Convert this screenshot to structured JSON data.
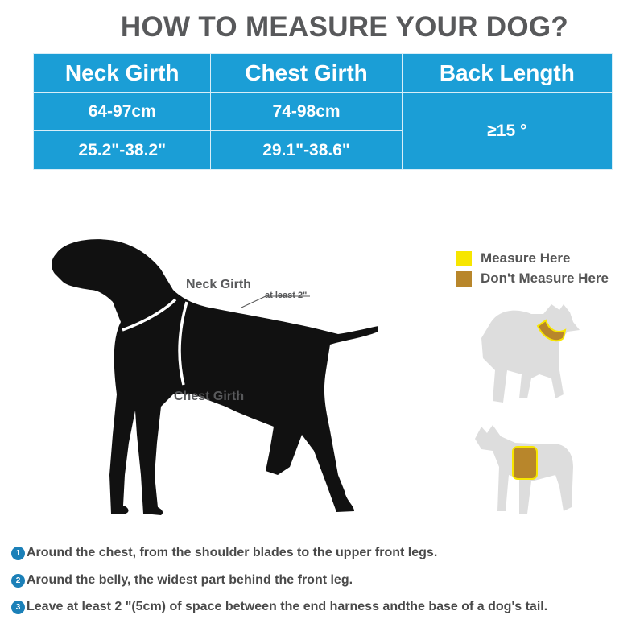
{
  "title": "HOW TO MEASURE YOUR DOG?",
  "table": {
    "headers": [
      "Neck Girth",
      "Chest Girth",
      "Back Length"
    ],
    "neck": [
      "64-97cm",
      "25.2\"-38.2\""
    ],
    "chest": [
      "74-98cm",
      "29.1\"-38.6\""
    ],
    "back": "≥15 °",
    "color": "#1b9ed6"
  },
  "diagram": {
    "neck_label": "Neck Girth",
    "chest_label": "Chest Girth",
    "gap_label": "at least 2\""
  },
  "legend": [
    {
      "label": "Measure Here",
      "color": "#f7e600"
    },
    {
      "label": "Don't Measure Here",
      "color": "#b8862b"
    }
  ],
  "notes": [
    {
      "num": "1",
      "text": "Around the chest, from the shoulder blades to the upper front legs."
    },
    {
      "num": "2",
      "text": "Around the belly, the widest part behind the front leg."
    },
    {
      "num": "3",
      "text": "Leave at least 2 \"(5cm) of space between the end harness andthe base of a dog's tail."
    }
  ]
}
